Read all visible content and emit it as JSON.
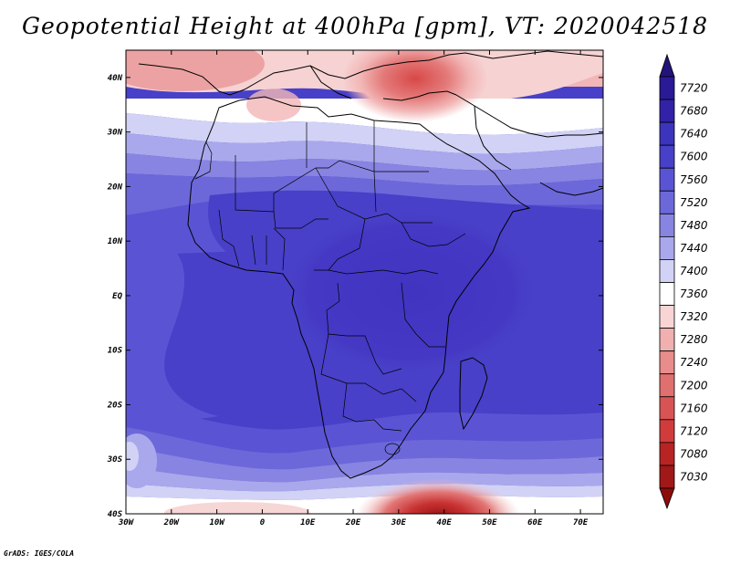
{
  "title": "Geopotential Height at 400hPa [gpm], VT: 2020042518",
  "credit": "GrADS: IGES/COLA",
  "map": {
    "lon_range": [
      -30,
      75
    ],
    "lat_range": [
      -40,
      45
    ],
    "lon_ticks": [
      {
        "lon": -30,
        "label": "30W"
      },
      {
        "lon": -20,
        "label": "20W"
      },
      {
        "lon": -10,
        "label": "10W"
      },
      {
        "lon": 0,
        "label": "0"
      },
      {
        "lon": 10,
        "label": "10E"
      },
      {
        "lon": 20,
        "label": "20E"
      },
      {
        "lon": 30,
        "label": "30E"
      },
      {
        "lon": 40,
        "label": "40E"
      },
      {
        "lon": 50,
        "label": "50E"
      },
      {
        "lon": 60,
        "label": "60E"
      },
      {
        "lon": 70,
        "label": "70E"
      }
    ],
    "lat_ticks": [
      {
        "lat": 40,
        "label": "40N"
      },
      {
        "lat": 30,
        "label": "30N"
      },
      {
        "lat": 20,
        "label": "20N"
      },
      {
        "lat": 10,
        "label": "10N"
      },
      {
        "lat": 0,
        "label": "EQ"
      },
      {
        "lat": -10,
        "label": "10S"
      },
      {
        "lat": -20,
        "label": "20S"
      },
      {
        "lat": -30,
        "label": "30S"
      },
      {
        "lat": -40,
        "label": "40S"
      }
    ]
  },
  "colorbar": {
    "levels": [
      {
        "label": "7720",
        "color": "#2a1a96"
      },
      {
        "label": "7680",
        "color": "#3222a8"
      },
      {
        "label": "7640",
        "color": "#3c34bc"
      },
      {
        "label": "7600",
        "color": "#4840c8"
      },
      {
        "label": "7560",
        "color": "#5a54d4"
      },
      {
        "label": "7520",
        "color": "#6c68da"
      },
      {
        "label": "7480",
        "color": "#8884e2"
      },
      {
        "label": "7440",
        "color": "#aaa8ec"
      },
      {
        "label": "7400",
        "color": "#d2d2f6"
      },
      {
        "label": "7360",
        "color": "#ffffff"
      },
      {
        "label": "7320",
        "color": "#f8d4d4"
      },
      {
        "label": "7280",
        "color": "#f0b0b0"
      },
      {
        "label": "7240",
        "color": "#e88c8c"
      },
      {
        "label": "7200",
        "color": "#e07070"
      },
      {
        "label": "7160",
        "color": "#d85454"
      },
      {
        "label": "7120",
        "color": "#d03c3c"
      },
      {
        "label": "7080",
        "color": "#b82424"
      },
      {
        "label": "7030",
        "color": "#a01818"
      }
    ],
    "top_arrow_color": "#221478",
    "bottom_arrow_color": "#8c0c0c"
  }
}
